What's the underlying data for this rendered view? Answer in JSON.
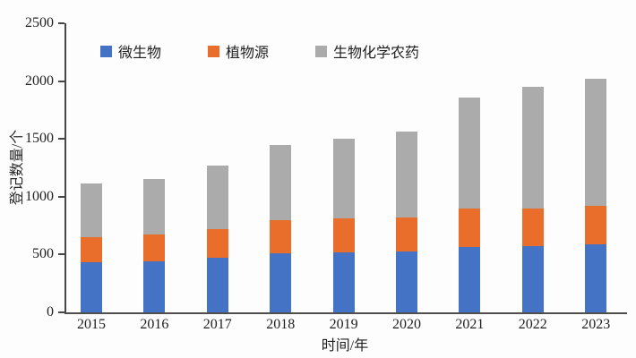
{
  "chart_data": {
    "type": "bar",
    "stacked": true,
    "title": "",
    "xlabel": "时间/年",
    "ylabel": "登记数量/个",
    "categories": [
      "2015",
      "2016",
      "2017",
      "2018",
      "2019",
      "2020",
      "2021",
      "2022",
      "2023"
    ],
    "series": [
      {
        "name": "微生物",
        "slug": "microbial",
        "color": "#4472C4",
        "values": [
          430,
          445,
          470,
          510,
          515,
          525,
          565,
          570,
          585
        ]
      },
      {
        "name": "植物源",
        "slug": "plant-derived",
        "color": "#E96E2B",
        "values": [
          220,
          230,
          250,
          290,
          295,
          295,
          335,
          330,
          335
        ]
      },
      {
        "name": "生物化学农药",
        "slug": "biochemical-pesticide",
        "color": "#ABABAB",
        "values": [
          465,
          480,
          550,
          650,
          690,
          745,
          960,
          1050,
          1100
        ]
      }
    ],
    "totals": [
      1115,
      1155,
      1270,
      1450,
      1500,
      1565,
      1860,
      1950,
      2020
    ],
    "ylim": [
      0,
      2500
    ],
    "yticks": [
      0,
      500,
      1000,
      1500,
      2000,
      2500
    ],
    "grid": false,
    "legend_position": "top-inside"
  }
}
